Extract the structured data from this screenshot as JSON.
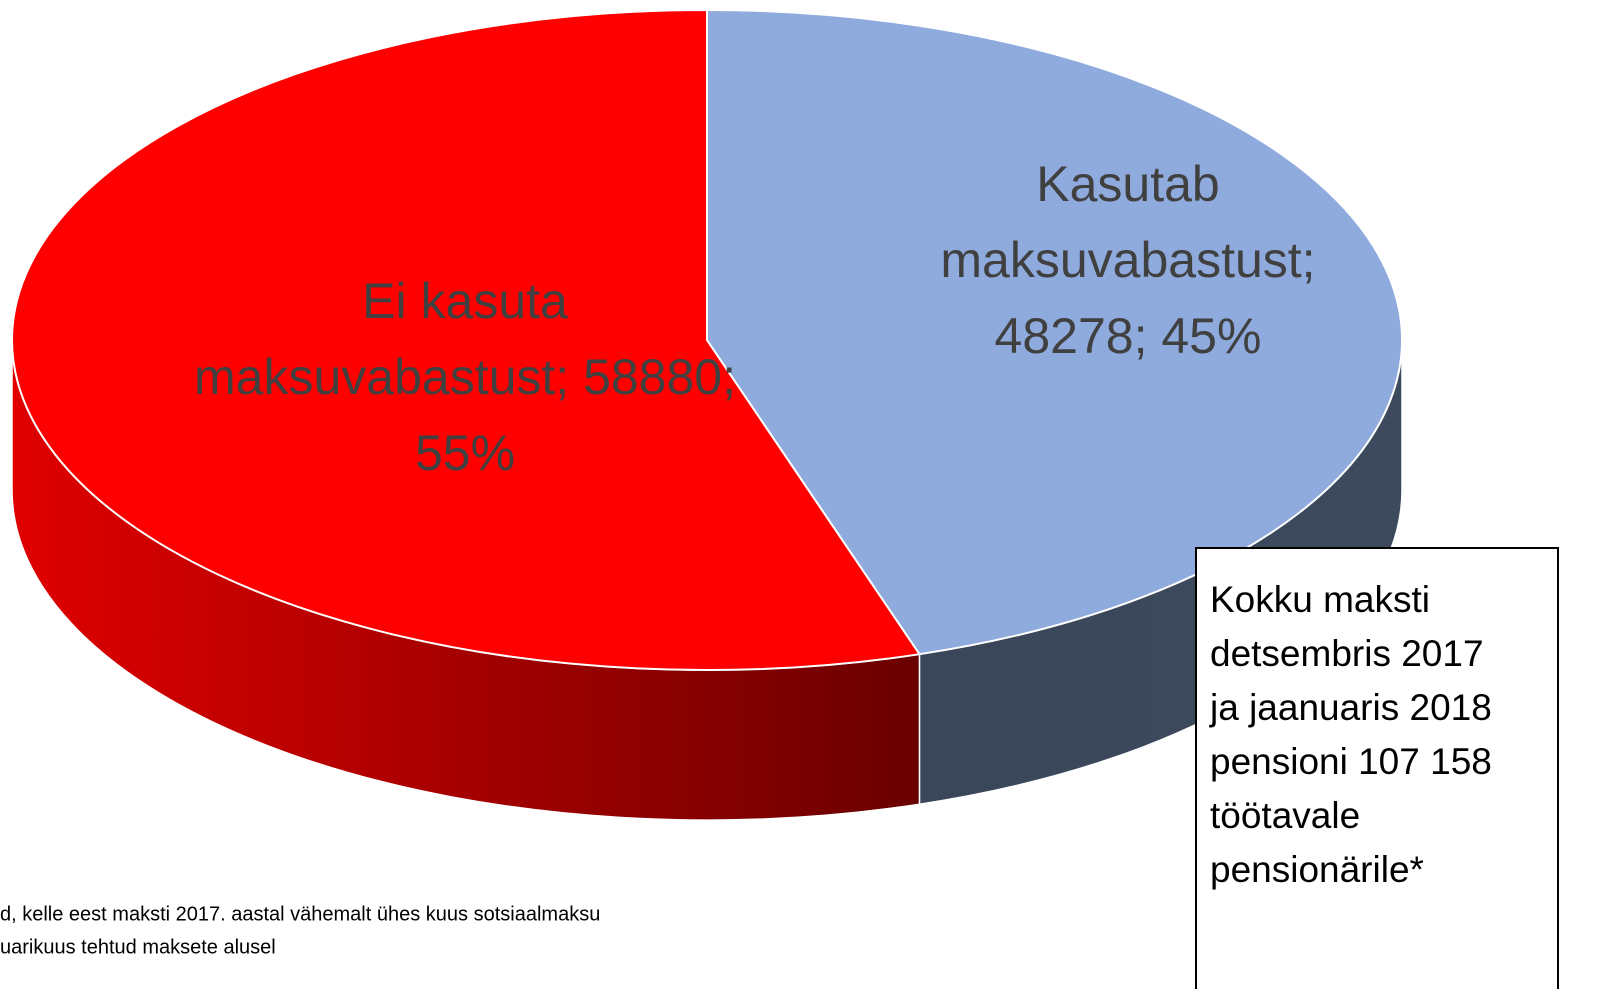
{
  "chart_data": {
    "type": "pie3d",
    "values": [
      58880,
      48278
    ],
    "colors": [
      "#ff0000",
      "#8faadc"
    ],
    "value_labels": [
      [
        "Ei kasuta",
        "maksuvabastust; 58880;",
        "55%"
      ],
      [
        "Kasutab",
        "maksuvabastust;",
        "48278; 45%"
      ]
    ],
    "annotation": [
      "Kokku maksti",
      "detsembris 2017",
      "ja jaanuaris 2018",
      "pensioni 107 158",
      "töötavale",
      "pensionärile*"
    ],
    "footnote": [
      "d, kelle eest maksti 2017. aastal vähemalt ühes kuus  sotsiaalmaksu",
      "uarikuus tehtud maksete alusel"
    ]
  }
}
